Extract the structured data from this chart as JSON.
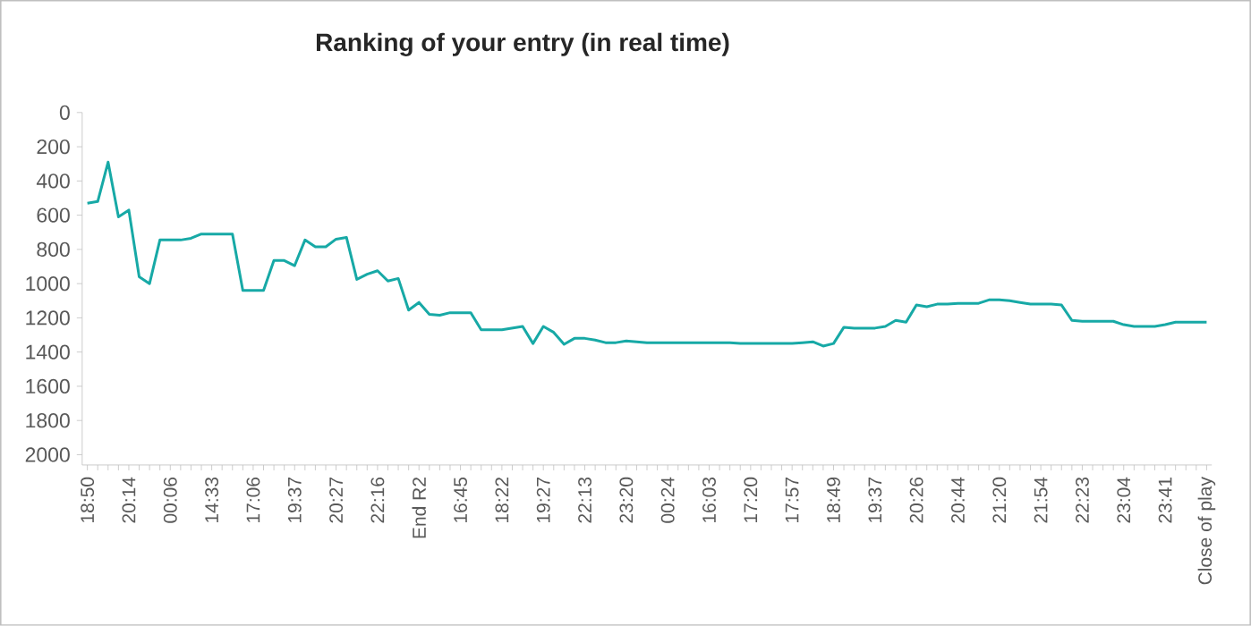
{
  "chart_data": {
    "type": "line",
    "title": "Ranking of your entry (in real time)",
    "categories": [
      "18:50",
      null,
      null,
      null,
      "20:14",
      null,
      null,
      null,
      "00:06",
      null,
      null,
      null,
      "14:33",
      null,
      null,
      null,
      "17:06",
      null,
      null,
      null,
      "19:37",
      null,
      null,
      null,
      "20:27",
      null,
      null,
      null,
      "22:16",
      null,
      null,
      null,
      "End R2",
      null,
      null,
      null,
      "16:45",
      null,
      null,
      null,
      "18:22",
      null,
      null,
      null,
      "19:27",
      null,
      null,
      null,
      "22:13",
      null,
      null,
      null,
      "23:20",
      null,
      null,
      null,
      "00:24",
      null,
      null,
      null,
      "16:03",
      null,
      null,
      null,
      "17:20",
      null,
      null,
      null,
      "17:57",
      null,
      null,
      null,
      "18:49",
      null,
      null,
      null,
      "19:37",
      null,
      null,
      null,
      "20:26",
      null,
      null,
      null,
      "20:44",
      null,
      null,
      null,
      "21:20",
      null,
      null,
      null,
      "21:54",
      null,
      null,
      null,
      "22:23",
      null,
      null,
      null,
      "23:04",
      null,
      null,
      null,
      "23:41",
      null,
      null,
      null,
      "Close of play"
    ],
    "values": [
      530,
      520,
      290,
      610,
      570,
      960,
      1000,
      745,
      745,
      745,
      735,
      710,
      710,
      710,
      710,
      1040,
      1040,
      1040,
      865,
      865,
      895,
      745,
      785,
      785,
      740,
      730,
      975,
      945,
      925,
      985,
      970,
      1155,
      1110,
      1180,
      1185,
      1170,
      1170,
      1170,
      1270,
      1270,
      1270,
      1260,
      1250,
      1350,
      1250,
      1285,
      1355,
      1320,
      1320,
      1330,
      1345,
      1345,
      1335,
      1340,
      1345,
      1345,
      1345,
      1345,
      1345,
      1345,
      1345,
      1345,
      1345,
      1350,
      1350,
      1350,
      1350,
      1350,
      1350,
      1345,
      1340,
      1365,
      1350,
      1255,
      1260,
      1260,
      1260,
      1250,
      1215,
      1225,
      1125,
      1135,
      1120,
      1120,
      1115,
      1115,
      1115,
      1095,
      1095,
      1100,
      1110,
      1120,
      1120,
      1120,
      1125,
      1215,
      1220,
      1220,
      1220,
      1220,
      1240,
      1250,
      1250,
      1250,
      1240,
      1225,
      1225,
      1225,
      1225
    ],
    "color": "#17a9a6",
    "ylim": [
      2060,
      0
    ],
    "yticks": [
      0,
      200,
      400,
      600,
      800,
      1000,
      1200,
      1400,
      1600,
      1800,
      2000
    ]
  }
}
